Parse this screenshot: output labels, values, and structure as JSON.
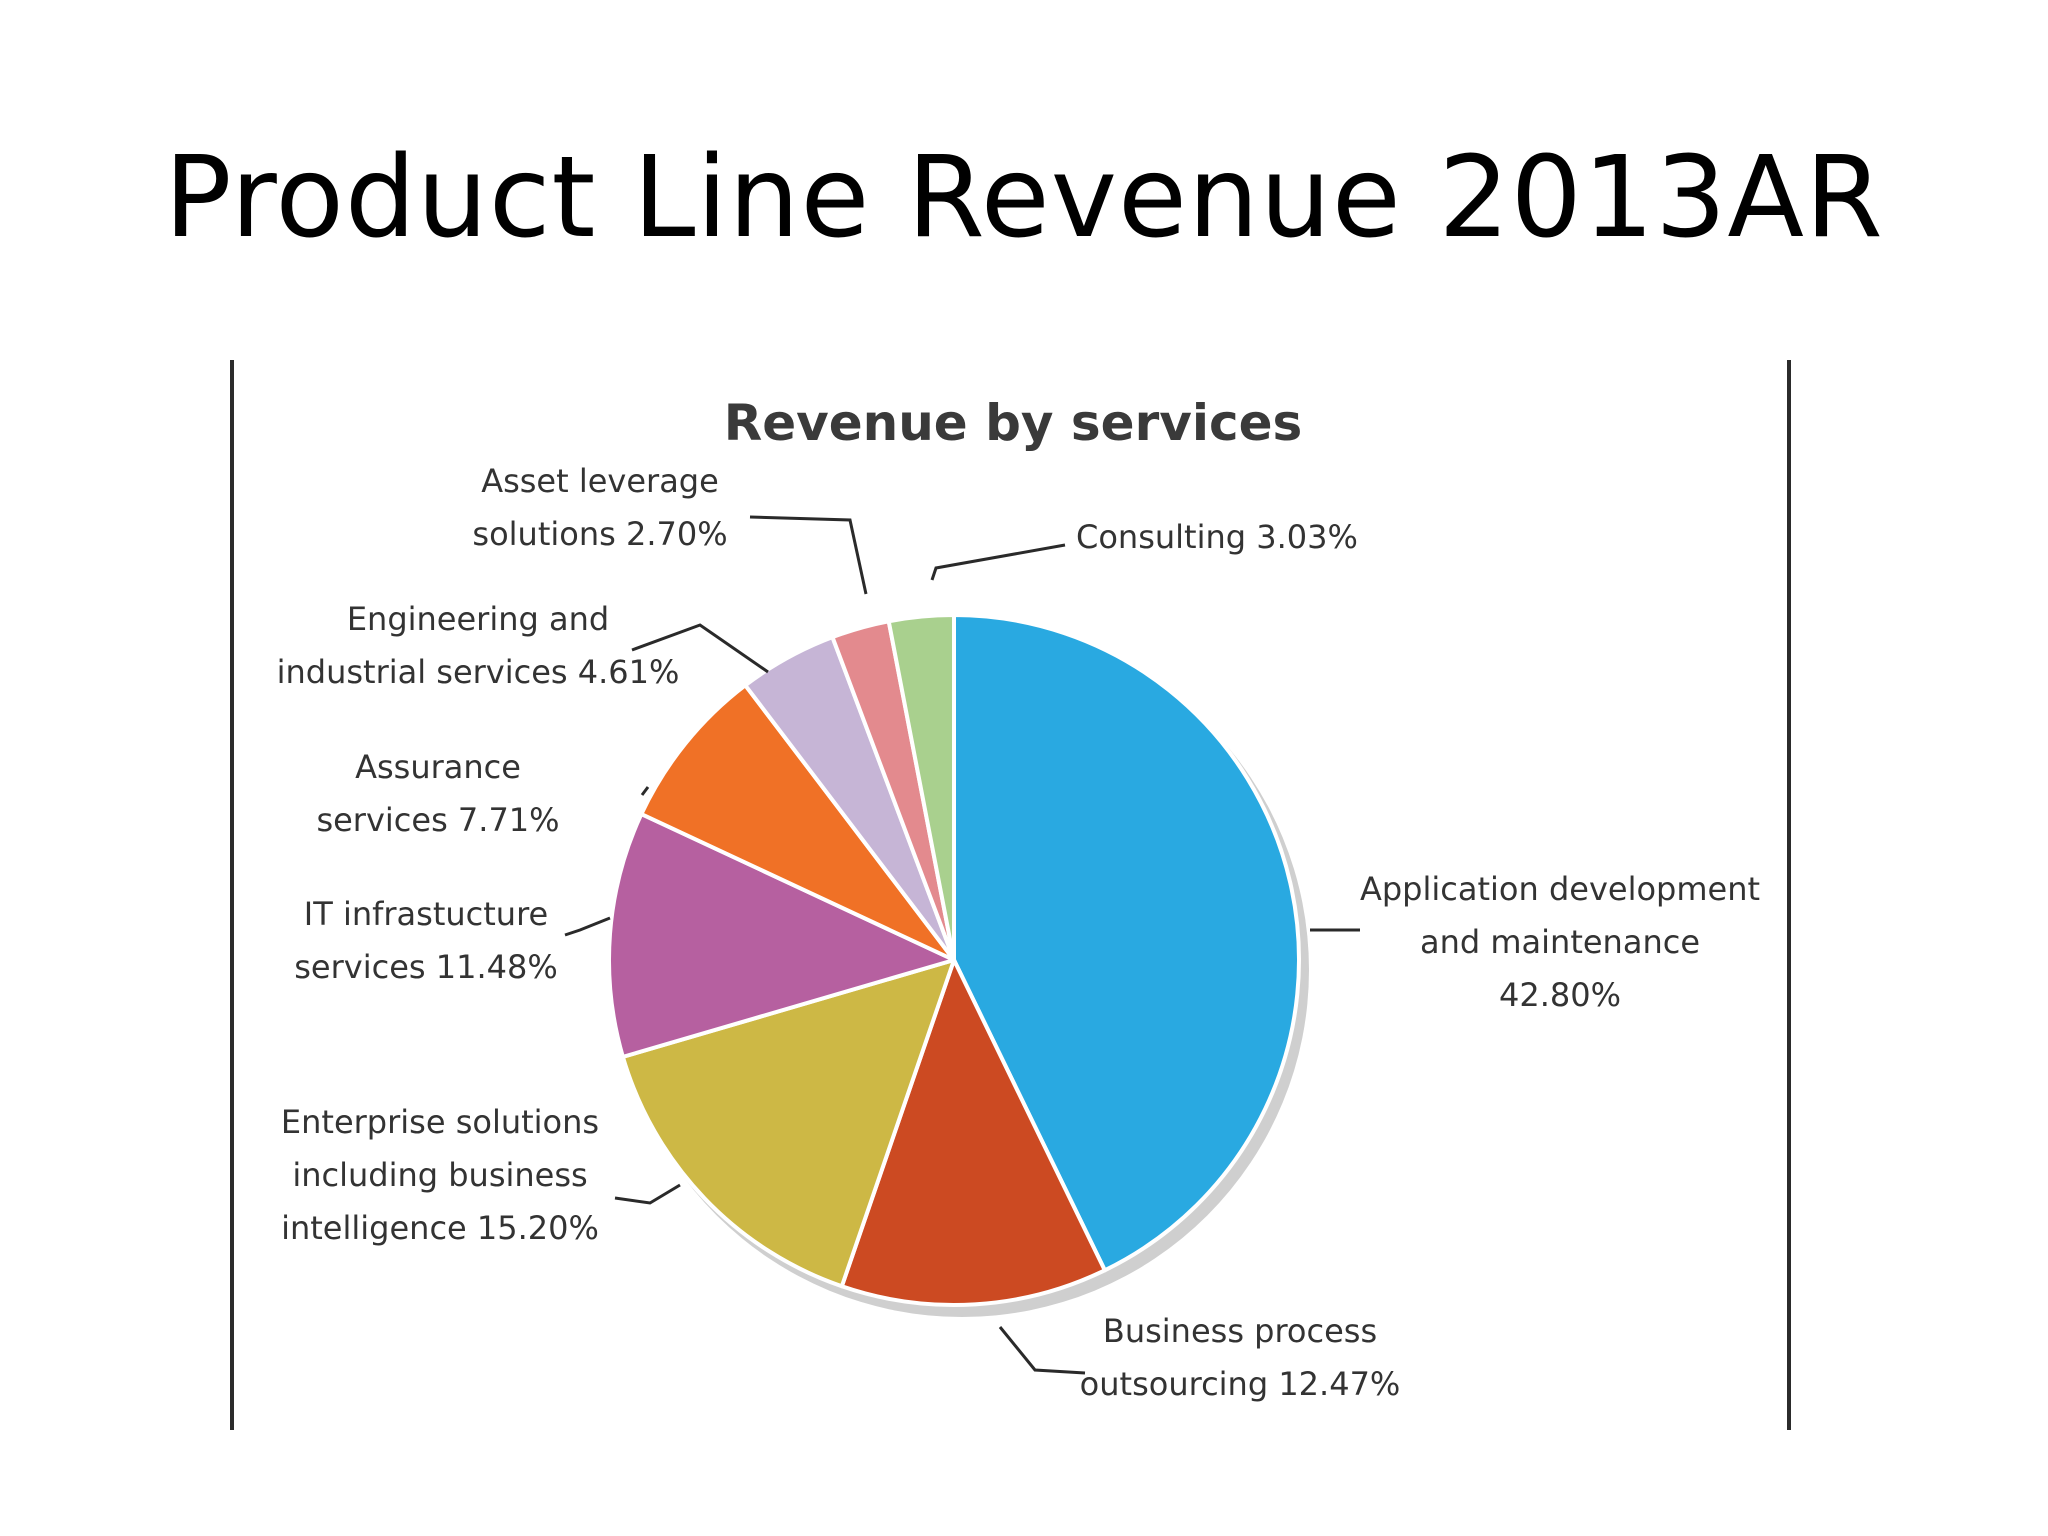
{
  "slide": {
    "title": "Product Line Revenue 2013AR"
  },
  "chart_data": {
    "type": "pie",
    "title": "Revenue by services",
    "start_angle_deg": 0,
    "direction": "clockwise",
    "legend": "none",
    "slices": [
      {
        "label_lines": [
          "Application development",
          "and maintenance",
          "42.80%"
        ],
        "value": 42.8,
        "color": "#29a9e1"
      },
      {
        "label_lines": [
          "Business process",
          "outsourcing 12.47%"
        ],
        "value": 12.47,
        "color": "#cc4a22"
      },
      {
        "label_lines": [
          "Enterprise solutions",
          "including business",
          "intelligence 15.20%"
        ],
        "value": 15.2,
        "color": "#cdb845"
      },
      {
        "label_lines": [
          "IT infrastucture",
          "services 11.48%"
        ],
        "value": 11.48,
        "color": "#b660a0"
      },
      {
        "label_lines": [
          "Assurance",
          "services 7.71%"
        ],
        "value": 7.71,
        "color": "#f07126"
      },
      {
        "label_lines": [
          "Engineering and",
          "industrial services 4.61%"
        ],
        "value": 4.61,
        "color": "#c6b5d6"
      },
      {
        "label_lines": [
          "Asset leverage",
          "solutions 2.70%"
        ],
        "value": 2.7,
        "color": "#e38a8e"
      },
      {
        "label_lines": [
          "Consulting 3.03%"
        ],
        "value": 3.03,
        "color": "#a9d08e"
      }
    ]
  }
}
